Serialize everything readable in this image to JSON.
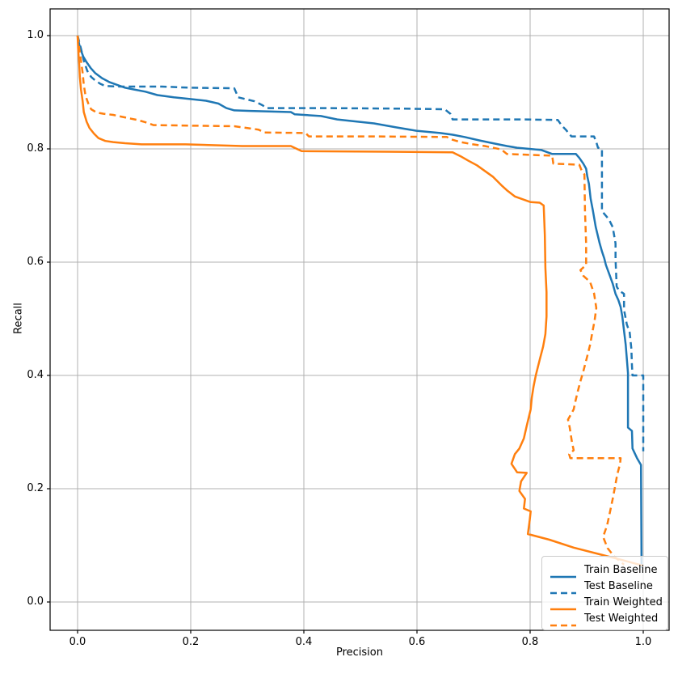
{
  "figure": {
    "xlabel": "Precision",
    "ylabel": "Recall",
    "background_color": "#ffffff",
    "grid_color": "#b0b0b0",
    "axis_color": "#000000"
  },
  "legend": {
    "position": "lower right",
    "entries": [
      "Train Baseline",
      "Test Baseline",
      "Train Weighted",
      "Test Weighted"
    ]
  },
  "chart_data": {
    "type": "line",
    "title": "",
    "xlabel": "Precision",
    "ylabel": "Recall",
    "xlim": [
      -0.05,
      1.05
    ],
    "ylim": [
      -0.05,
      1.05
    ],
    "grid": true,
    "legend_position": "lower right",
    "x_tick_values": [
      0.0,
      0.2,
      0.4,
      0.6,
      0.8,
      1.0
    ],
    "x_tick_labels": [
      "0.0",
      "0.2",
      "0.4",
      "0.6",
      "0.8",
      "1.0"
    ],
    "y_tick_values": [
      0.0,
      0.2,
      0.4,
      0.6,
      0.8,
      1.0
    ],
    "y_tick_labels": [
      "0.0",
      "0.2",
      "0.4",
      "0.6",
      "0.8",
      "1.0"
    ],
    "series": [
      {
        "name": "Train Baseline",
        "color": "#1f77b4",
        "style": "solid",
        "points": [
          [
            0.0,
            1.0
          ],
          [
            0.003,
            0.984
          ],
          [
            0.006,
            0.974
          ],
          [
            0.01,
            0.963
          ],
          [
            0.016,
            0.953
          ],
          [
            0.023,
            0.943
          ],
          [
            0.031,
            0.934
          ],
          [
            0.043,
            0.925
          ],
          [
            0.056,
            0.918
          ],
          [
            0.07,
            0.913
          ],
          [
            0.084,
            0.908
          ],
          [
            0.099,
            0.905
          ],
          [
            0.12,
            0.901
          ],
          [
            0.141,
            0.895
          ],
          [
            0.17,
            0.891
          ],
          [
            0.199,
            0.888
          ],
          [
            0.227,
            0.885
          ],
          [
            0.249,
            0.88
          ],
          [
            0.263,
            0.872
          ],
          [
            0.277,
            0.868
          ],
          [
            0.306,
            0.867
          ],
          [
            0.377,
            0.865
          ],
          [
            0.384,
            0.861
          ],
          [
            0.43,
            0.858
          ],
          [
            0.459,
            0.852
          ],
          [
            0.487,
            0.849
          ],
          [
            0.524,
            0.845
          ],
          [
            0.563,
            0.838
          ],
          [
            0.599,
            0.832
          ],
          [
            0.641,
            0.828
          ],
          [
            0.663,
            0.825
          ],
          [
            0.684,
            0.821
          ],
          [
            0.71,
            0.815
          ],
          [
            0.734,
            0.81
          ],
          [
            0.759,
            0.805
          ],
          [
            0.777,
            0.802
          ],
          [
            0.82,
            0.798
          ],
          [
            0.839,
            0.791
          ],
          [
            0.881,
            0.791
          ],
          [
            0.887,
            0.784
          ],
          [
            0.894,
            0.774
          ],
          [
            0.899,
            0.765
          ],
          [
            0.901,
            0.752
          ],
          [
            0.904,
            0.738
          ],
          [
            0.907,
            0.712
          ],
          [
            0.911,
            0.691
          ],
          [
            0.916,
            0.662
          ],
          [
            0.923,
            0.633
          ],
          [
            0.927,
            0.619
          ],
          [
            0.931,
            0.607
          ],
          [
            0.934,
            0.595
          ],
          [
            0.941,
            0.576
          ],
          [
            0.946,
            0.562
          ],
          [
            0.951,
            0.544
          ],
          [
            0.956,
            0.533
          ],
          [
            0.96,
            0.521
          ],
          [
            0.963,
            0.504
          ],
          [
            0.969,
            0.454
          ],
          [
            0.973,
            0.404
          ],
          [
            0.973,
            0.308
          ],
          [
            0.98,
            0.302
          ],
          [
            0.981,
            0.271
          ],
          [
            0.989,
            0.254
          ],
          [
            0.996,
            0.242
          ],
          [
            0.997,
            0.06
          ]
        ]
      },
      {
        "name": "Test Baseline",
        "color": "#1f77b4",
        "style": "dashed",
        "points": [
          [
            0.0,
            1.0
          ],
          [
            0.006,
            0.977
          ],
          [
            0.011,
            0.956
          ],
          [
            0.017,
            0.938
          ],
          [
            0.024,
            0.927
          ],
          [
            0.031,
            0.921
          ],
          [
            0.04,
            0.915
          ],
          [
            0.049,
            0.911
          ],
          [
            0.077,
            0.91
          ],
          [
            0.149,
            0.91
          ],
          [
            0.199,
            0.908
          ],
          [
            0.277,
            0.907
          ],
          [
            0.284,
            0.891
          ],
          [
            0.313,
            0.884
          ],
          [
            0.327,
            0.877
          ],
          [
            0.334,
            0.872
          ],
          [
            0.434,
            0.872
          ],
          [
            0.577,
            0.871
          ],
          [
            0.649,
            0.87
          ],
          [
            0.659,
            0.862
          ],
          [
            0.663,
            0.852
          ],
          [
            0.791,
            0.852
          ],
          [
            0.849,
            0.851
          ],
          [
            0.856,
            0.841
          ],
          [
            0.863,
            0.834
          ],
          [
            0.873,
            0.822
          ],
          [
            0.913,
            0.822
          ],
          [
            0.917,
            0.812
          ],
          [
            0.92,
            0.802
          ],
          [
            0.927,
            0.8
          ],
          [
            0.927,
            0.69
          ],
          [
            0.939,
            0.676
          ],
          [
            0.946,
            0.662
          ],
          [
            0.951,
            0.633
          ],
          [
            0.951,
            0.605
          ],
          [
            0.953,
            0.557
          ],
          [
            0.957,
            0.55
          ],
          [
            0.966,
            0.544
          ],
          [
            0.966,
            0.516
          ],
          [
            0.971,
            0.49
          ],
          [
            0.976,
            0.476
          ],
          [
            0.979,
            0.447
          ],
          [
            0.98,
            0.418
          ],
          [
            0.981,
            0.4
          ],
          [
            1.0,
            0.4
          ],
          [
            1.0,
            0.266
          ]
        ]
      },
      {
        "name": "Train Weighted",
        "color": "#ff7f0e",
        "style": "solid",
        "points": [
          [
            0.0,
            1.0
          ],
          [
            0.001,
            0.977
          ],
          [
            0.003,
            0.948
          ],
          [
            0.004,
            0.927
          ],
          [
            0.006,
            0.905
          ],
          [
            0.009,
            0.884
          ],
          [
            0.011,
            0.865
          ],
          [
            0.016,
            0.848
          ],
          [
            0.021,
            0.837
          ],
          [
            0.029,
            0.827
          ],
          [
            0.037,
            0.819
          ],
          [
            0.049,
            0.814
          ],
          [
            0.063,
            0.812
          ],
          [
            0.084,
            0.81
          ],
          [
            0.113,
            0.808
          ],
          [
            0.191,
            0.808
          ],
          [
            0.291,
            0.805
          ],
          [
            0.377,
            0.805
          ],
          [
            0.396,
            0.796
          ],
          [
            0.549,
            0.795
          ],
          [
            0.663,
            0.794
          ],
          [
            0.677,
            0.787
          ],
          [
            0.691,
            0.779
          ],
          [
            0.706,
            0.771
          ],
          [
            0.72,
            0.761
          ],
          [
            0.734,
            0.751
          ],
          [
            0.749,
            0.736
          ],
          [
            0.76,
            0.726
          ],
          [
            0.773,
            0.716
          ],
          [
            0.787,
            0.711
          ],
          [
            0.801,
            0.706
          ],
          [
            0.817,
            0.705
          ],
          [
            0.824,
            0.7
          ],
          [
            0.826,
            0.648
          ],
          [
            0.827,
            0.59
          ],
          [
            0.829,
            0.547
          ],
          [
            0.829,
            0.504
          ],
          [
            0.827,
            0.473
          ],
          [
            0.823,
            0.451
          ],
          [
            0.817,
            0.428
          ],
          [
            0.81,
            0.4
          ],
          [
            0.806,
            0.38
          ],
          [
            0.803,
            0.361
          ],
          [
            0.801,
            0.34
          ],
          [
            0.794,
            0.311
          ],
          [
            0.789,
            0.289
          ],
          [
            0.781,
            0.271
          ],
          [
            0.773,
            0.261
          ],
          [
            0.767,
            0.244
          ],
          [
            0.777,
            0.229
          ],
          [
            0.794,
            0.228
          ],
          [
            0.784,
            0.213
          ],
          [
            0.781,
            0.196
          ],
          [
            0.791,
            0.182
          ],
          [
            0.789,
            0.165
          ],
          [
            0.801,
            0.16
          ],
          [
            0.799,
            0.142
          ],
          [
            0.796,
            0.12
          ],
          [
            0.834,
            0.11
          ],
          [
            0.877,
            0.096
          ],
          [
            0.92,
            0.085
          ],
          [
            0.963,
            0.074
          ],
          [
            1.0,
            0.064
          ]
        ]
      },
      {
        "name": "Test Weighted",
        "color": "#ff7f0e",
        "style": "dashed",
        "points": [
          [
            0.0,
            1.0
          ],
          [
            0.003,
            0.977
          ],
          [
            0.006,
            0.956
          ],
          [
            0.009,
            0.934
          ],
          [
            0.011,
            0.913
          ],
          [
            0.014,
            0.894
          ],
          [
            0.019,
            0.88
          ],
          [
            0.024,
            0.87
          ],
          [
            0.034,
            0.864
          ],
          [
            0.046,
            0.862
          ],
          [
            0.063,
            0.86
          ],
          [
            0.077,
            0.857
          ],
          [
            0.091,
            0.854
          ],
          [
            0.106,
            0.851
          ],
          [
            0.12,
            0.847
          ],
          [
            0.134,
            0.842
          ],
          [
            0.199,
            0.841
          ],
          [
            0.277,
            0.84
          ],
          [
            0.32,
            0.834
          ],
          [
            0.33,
            0.829
          ],
          [
            0.403,
            0.828
          ],
          [
            0.409,
            0.822
          ],
          [
            0.52,
            0.822
          ],
          [
            0.653,
            0.821
          ],
          [
            0.66,
            0.817
          ],
          [
            0.677,
            0.812
          ],
          [
            0.699,
            0.808
          ],
          [
            0.72,
            0.805
          ],
          [
            0.749,
            0.799
          ],
          [
            0.759,
            0.791
          ],
          [
            0.839,
            0.788
          ],
          [
            0.841,
            0.774
          ],
          [
            0.887,
            0.772
          ],
          [
            0.891,
            0.762
          ],
          [
            0.896,
            0.755
          ],
          [
            0.897,
            0.69
          ],
          [
            0.899,
            0.633
          ],
          [
            0.899,
            0.595
          ],
          [
            0.889,
            0.586
          ],
          [
            0.894,
            0.576
          ],
          [
            0.906,
            0.565
          ],
          [
            0.913,
            0.545
          ],
          [
            0.917,
            0.519
          ],
          [
            0.914,
            0.497
          ],
          [
            0.91,
            0.476
          ],
          [
            0.906,
            0.454
          ],
          [
            0.9,
            0.43
          ],
          [
            0.894,
            0.407
          ],
          [
            0.889,
            0.39
          ],
          [
            0.884,
            0.371
          ],
          [
            0.88,
            0.354
          ],
          [
            0.877,
            0.34
          ],
          [
            0.867,
            0.322
          ],
          [
            0.87,
            0.308
          ],
          [
            0.874,
            0.282
          ],
          [
            0.877,
            0.268
          ],
          [
            0.869,
            0.261
          ],
          [
            0.871,
            0.254
          ],
          [
            0.96,
            0.254
          ],
          [
            0.959,
            0.244
          ],
          [
            0.954,
            0.225
          ],
          [
            0.95,
            0.203
          ],
          [
            0.946,
            0.182
          ],
          [
            0.941,
            0.158
          ],
          [
            0.936,
            0.135
          ],
          [
            0.929,
            0.115
          ],
          [
            0.937,
            0.095
          ],
          [
            0.949,
            0.08
          ],
          [
            0.966,
            0.066
          ]
        ]
      }
    ]
  }
}
